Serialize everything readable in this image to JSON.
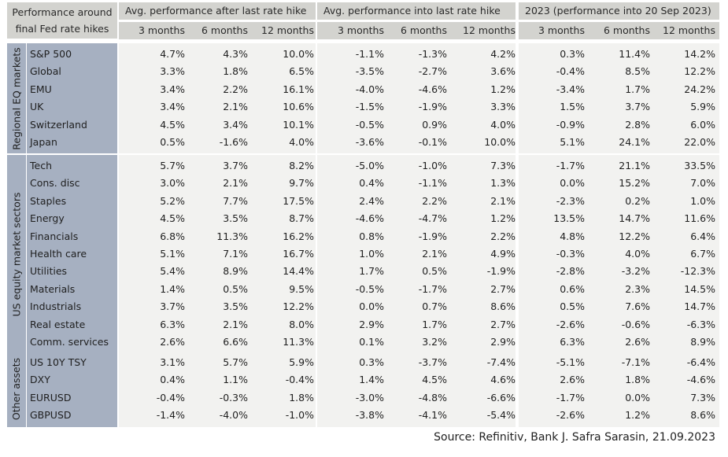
{
  "header": {
    "corner_title": "Performance around\nfinal Fed rate hikes",
    "groups": [
      "Avg. performance after last rate hike",
      "Avg. performance into last rate hike",
      "2023 (performance into 20 Sep 2023)"
    ],
    "periods": [
      "3 months",
      "6 months",
      "12 months"
    ]
  },
  "sections": [
    {
      "label": "Regional EQ markets",
      "rows": [
        {
          "name": "S&P 500",
          "values": [
            "4.7%",
            "4.3%",
            "10.0%",
            "-1.1%",
            "-1.3%",
            "4.2%",
            "0.3%",
            "11.4%",
            "14.2%"
          ]
        },
        {
          "name": "Global",
          "values": [
            "3.3%",
            "1.8%",
            "6.5%",
            "-3.5%",
            "-2.7%",
            "3.6%",
            "-0.4%",
            "8.5%",
            "12.2%"
          ]
        },
        {
          "name": "EMU",
          "values": [
            "3.4%",
            "2.2%",
            "16.1%",
            "-4.0%",
            "-4.6%",
            "1.2%",
            "-3.4%",
            "1.7%",
            "24.2%"
          ]
        },
        {
          "name": "UK",
          "values": [
            "3.4%",
            "2.1%",
            "10.6%",
            "-1.5%",
            "-1.9%",
            "3.3%",
            "1.5%",
            "3.7%",
            "5.9%"
          ]
        },
        {
          "name": "Switzerland",
          "values": [
            "4.5%",
            "3.4%",
            "10.1%",
            "-0.5%",
            "0.9%",
            "4.0%",
            "-0.9%",
            "2.8%",
            "6.0%"
          ]
        },
        {
          "name": "Japan",
          "values": [
            "0.5%",
            "-1.6%",
            "4.0%",
            "-3.6%",
            "-0.1%",
            "10.0%",
            "5.1%",
            "24.1%",
            "22.0%"
          ]
        }
      ]
    },
    {
      "label": "US equity market sectors",
      "rows": [
        {
          "name": "Tech",
          "values": [
            "5.7%",
            "3.7%",
            "8.2%",
            "-5.0%",
            "-1.0%",
            "7.3%",
            "-1.7%",
            "21.1%",
            "33.5%"
          ]
        },
        {
          "name": "Cons. disc",
          "values": [
            "3.0%",
            "2.1%",
            "9.7%",
            "0.4%",
            "-1.1%",
            "1.3%",
            "0.0%",
            "15.2%",
            "7.0%"
          ]
        },
        {
          "name": "Staples",
          "values": [
            "5.2%",
            "7.7%",
            "17.5%",
            "2.4%",
            "2.2%",
            "2.1%",
            "-2.3%",
            "0.2%",
            "1.0%"
          ]
        },
        {
          "name": "Energy",
          "values": [
            "4.5%",
            "3.5%",
            "8.7%",
            "-4.6%",
            "-4.7%",
            "1.2%",
            "13.5%",
            "14.7%",
            "11.6%"
          ]
        },
        {
          "name": "Financials",
          "values": [
            "6.8%",
            "11.3%",
            "16.2%",
            "0.8%",
            "-1.9%",
            "2.2%",
            "4.8%",
            "12.2%",
            "6.4%"
          ]
        },
        {
          "name": "Health care",
          "values": [
            "5.1%",
            "7.1%",
            "16.7%",
            "1.0%",
            "2.1%",
            "4.9%",
            "-0.3%",
            "4.0%",
            "6.7%"
          ]
        },
        {
          "name": "Utilities",
          "values": [
            "5.4%",
            "8.9%",
            "14.4%",
            "1.7%",
            "0.5%",
            "-1.9%",
            "-2.8%",
            "-3.2%",
            "-12.3%"
          ]
        },
        {
          "name": "Materials",
          "values": [
            "1.4%",
            "0.5%",
            "9.5%",
            "-0.5%",
            "-1.7%",
            "2.7%",
            "0.6%",
            "2.3%",
            "14.5%"
          ]
        },
        {
          "name": "Industrials",
          "values": [
            "3.7%",
            "3.5%",
            "12.2%",
            "0.0%",
            "0.7%",
            "8.6%",
            "0.5%",
            "7.6%",
            "14.7%"
          ]
        },
        {
          "name": "Real estate",
          "values": [
            "6.3%",
            "2.1%",
            "8.0%",
            "2.9%",
            "1.7%",
            "2.7%",
            "-2.6%",
            "-0.6%",
            "-6.3%"
          ]
        },
        {
          "name": "Comm. services",
          "values": [
            "2.6%",
            "6.6%",
            "11.3%",
            "0.1%",
            "3.2%",
            "2.9%",
            "6.3%",
            "2.6%",
            "8.9%"
          ]
        }
      ]
    },
    {
      "label": "Other assets",
      "rows": [
        {
          "name": "US 10Y TSY",
          "values": [
            "3.1%",
            "5.7%",
            "5.9%",
            "0.3%",
            "-3.7%",
            "-7.4%",
            "-5.1%",
            "-7.1%",
            "-6.4%"
          ]
        },
        {
          "name": "DXY",
          "values": [
            "0.4%",
            "1.1%",
            "-0.4%",
            "1.4%",
            "4.5%",
            "4.6%",
            "2.6%",
            "1.8%",
            "-4.6%"
          ]
        },
        {
          "name": "EURUSD",
          "values": [
            "-0.4%",
            "-0.3%",
            "1.8%",
            "-3.0%",
            "-4.8%",
            "-6.6%",
            "-1.7%",
            "0.0%",
            "7.3%"
          ]
        },
        {
          "name": "GBPUSD",
          "values": [
            "-1.4%",
            "-4.0%",
            "-1.0%",
            "-3.8%",
            "-4.1%",
            "-5.4%",
            "-2.6%",
            "1.2%",
            "8.6%"
          ]
        }
      ]
    }
  ],
  "source": "Source: Refinitiv, Bank J. Safra Sarasin, 21.09.2023"
}
